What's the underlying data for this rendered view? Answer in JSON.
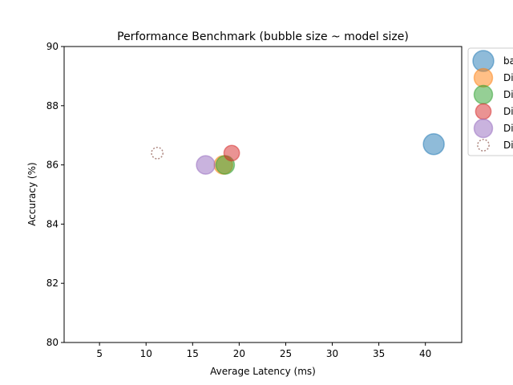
{
  "chart_data": {
    "type": "scatter",
    "title": "Performance Benchmark (bubble size ~ model size)",
    "xlabel": "Average Latency (ms)",
    "ylabel": "Accuracy (%)",
    "xlim": [
      1.2,
      43.9
    ],
    "ylim": [
      80,
      90
    ],
    "xticks": [
      5,
      10,
      15,
      20,
      25,
      30,
      35,
      40
    ],
    "yticks": [
      80,
      82,
      84,
      86,
      88,
      90
    ],
    "grid": false,
    "legend_position": "outside-top-right",
    "series": [
      {
        "name": "ba",
        "color": "#1f77b4",
        "marker": "filled",
        "x": [
          40.9
        ],
        "y": [
          86.7
        ],
        "size": 1.0
      },
      {
        "name": "Di",
        "color": "#ff7f0e",
        "marker": "filled",
        "x": [
          18.3
        ],
        "y": [
          86.0
        ],
        "size": 0.78
      },
      {
        "name": "Di",
        "color": "#2ca02c",
        "marker": "filled",
        "x": [
          18.5
        ],
        "y": [
          86.0
        ],
        "size": 0.78
      },
      {
        "name": "Di",
        "color": "#d62728",
        "marker": "filled",
        "x": [
          19.2
        ],
        "y": [
          86.4
        ],
        "size": 0.55
      },
      {
        "name": "Di",
        "color": "#9467bd",
        "marker": "filled",
        "x": [
          16.4
        ],
        "y": [
          86.0
        ],
        "size": 0.78
      },
      {
        "name": "Di",
        "color": "#8c564b",
        "marker": "dashed",
        "x": [
          11.2
        ],
        "y": [
          86.4
        ],
        "size": 0.3
      }
    ]
  }
}
